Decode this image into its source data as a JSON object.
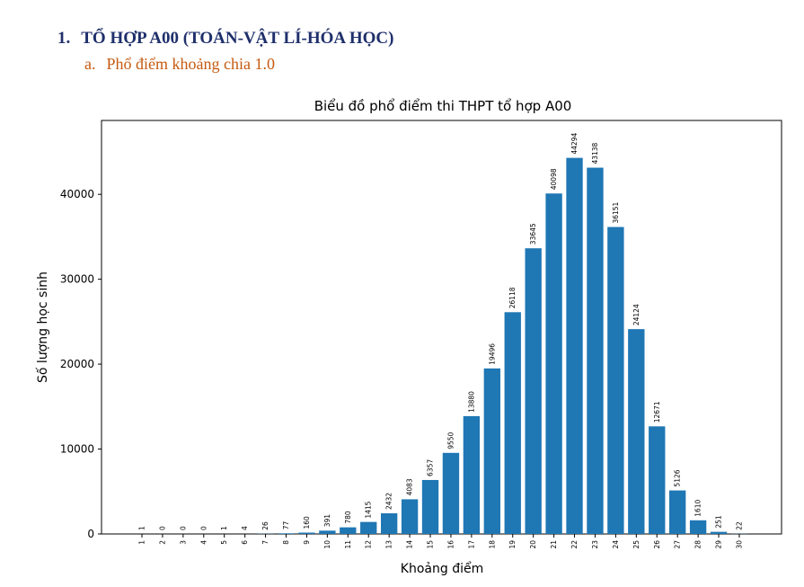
{
  "document": {
    "heading_number": "1.",
    "heading_text": "TỔ HỢP A00 (TOÁN-VẬT LÍ-HÓA HỌC)",
    "subheading_number": "a.",
    "subheading_text": "Phổ điểm khoảng chia 1.0"
  },
  "colors": {
    "bar": "#1f77b4",
    "heading": "#1f2f6b",
    "subheading": "#c55a11"
  },
  "chart_data": {
    "type": "bar",
    "title": "Biểu đồ phổ điểm thi THPT tổ hợp A00",
    "xlabel": "Khoảng điểm",
    "ylabel": "Số lượng học sinh",
    "categories": [
      "1",
      "2",
      "3",
      "4",
      "5",
      "6",
      "7",
      "8",
      "9",
      "10",
      "11",
      "12",
      "13",
      "14",
      "15",
      "16",
      "17",
      "18",
      "19",
      "20",
      "21",
      "22",
      "23",
      "24",
      "25",
      "26",
      "27",
      "28",
      "29",
      "30"
    ],
    "values": [
      1,
      0,
      0,
      0,
      1,
      4,
      26,
      77,
      160,
      391,
      780,
      1415,
      2432,
      4083,
      6357,
      9550,
      13880,
      19496,
      26118,
      33645,
      40098,
      44294,
      43138,
      36151,
      24124,
      12671,
      5126,
      1610,
      251,
      22
    ],
    "yticks": [
      "0",
      "10000",
      "20000",
      "30000",
      "40000"
    ],
    "ylim": [
      0,
      48700
    ],
    "grid": false,
    "legend": "none"
  }
}
